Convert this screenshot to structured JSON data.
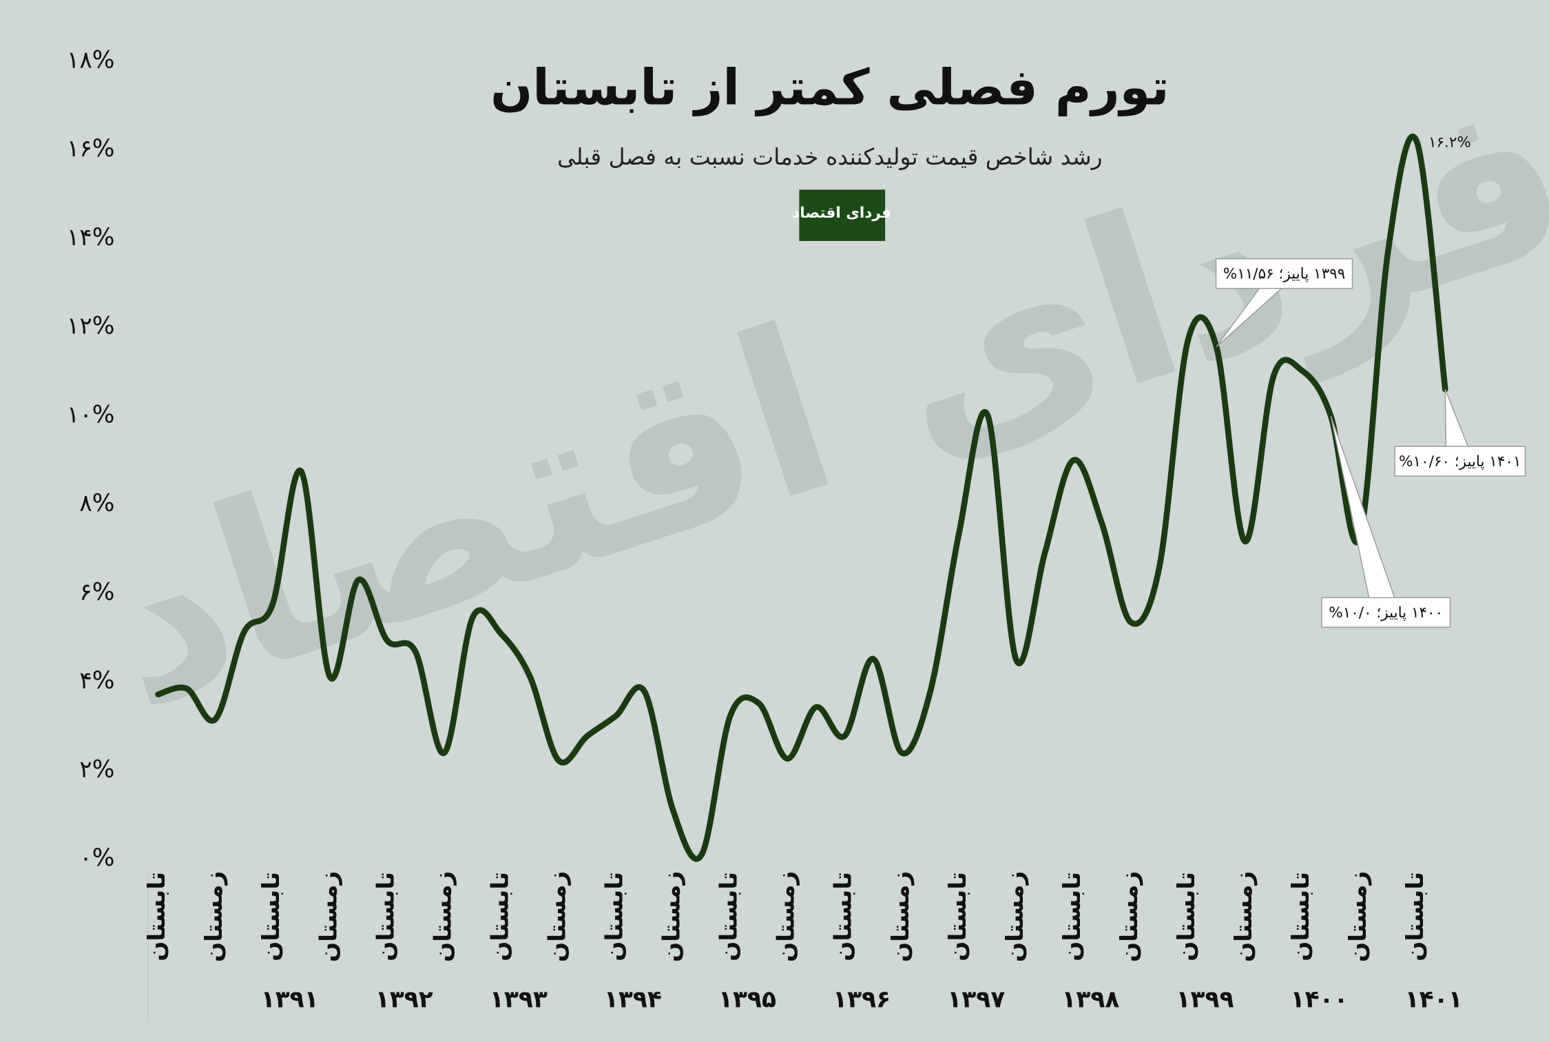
{
  "chart_data": {
    "type": "line",
    "title": "تورم فصلی کمتر از تابستان",
    "subtitle": "رشد شاخص قیمت تولیدکننده خدمات نسبت به فصل قبلی",
    "logo": "فردای اقتصاد",
    "color": "#1a3a12",
    "categories": [
      "تابستان",
      null,
      "زمستان",
      null,
      "تابستان",
      null,
      "زمستان",
      null,
      "تابستان",
      null,
      "زمستان",
      null,
      "تابستان",
      null,
      "زمستان",
      null,
      "تابستان",
      null,
      "زمستان",
      null,
      "تابستان",
      null,
      "زمستان",
      null,
      "تابستان",
      null,
      "زمستان",
      null,
      "تابستان",
      null,
      "زمستان",
      null,
      "تابستان",
      null,
      "زمستان",
      null,
      "تابستان",
      null,
      "زمستان",
      null,
      "تابستان",
      null,
      "زمستان",
      null,
      "تابستان",
      null
    ],
    "year_labels": [
      "۱۳۹۱",
      "۱۳۹۲",
      "۱۳۹۳",
      "۱۳۹۴",
      "۱۳۹۵",
      "۱۳۹۶",
      "۱۳۹۷",
      "۱۳۹۸",
      "۱۳۹۹",
      "۱۴۰۰",
      "۱۴۰۱"
    ],
    "values": [
      3.72,
      3.85,
      3.16,
      5.12,
      5.75,
      8.75,
      4.12,
      6.3,
      4.94,
      4.68,
      2.4,
      5.46,
      5.08,
      4.12,
      2.23,
      2.78,
      3.23,
      3.79,
      1.11,
      0.1,
      3.23,
      3.52,
      2.27,
      3.43,
      2.78,
      4.52,
      2.4,
      3.79,
      7.35,
      10.02,
      4.5,
      6.9,
      9.0,
      7.57,
      5.35,
      6.57,
      11.69,
      11.56,
      7.17,
      10.9,
      11.02,
      10.0,
      7.24,
      13.7,
      16.2,
      10.6
    ],
    "value_labels": [
      null,
      null,
      null,
      null,
      null,
      null,
      null,
      null,
      null,
      null,
      null,
      null,
      null,
      null,
      null,
      null,
      null,
      null,
      null,
      null,
      null,
      null,
      null,
      null,
      null,
      null,
      null,
      null,
      null,
      null,
      null,
      null,
      null,
      null,
      null,
      null,
      null,
      "۱۳۹۹ پاییز؛ ۱۱/۵۶%",
      null,
      null,
      null,
      "۱۴۰۰ پاییز؛ ۱۰/۰%",
      null,
      null,
      "۱۶.۲%",
      "۱۴۰۱ پاییز؛ ۱۰/۶۰%"
    ],
    "ylim": [
      0,
      18
    ],
    "yticks": [
      {
        "value": 0,
        "label": "۰%"
      },
      {
        "value": 2,
        "label": "۲%"
      },
      {
        "value": 4,
        "label": "۴%"
      },
      {
        "value": 6,
        "label": "۶%"
      },
      {
        "value": 8,
        "label": "۸%"
      },
      {
        "value": 10,
        "label": "۱۰%"
      },
      {
        "value": 12,
        "label": "۱۲%"
      },
      {
        "value": 14,
        "label": "۱۴%"
      },
      {
        "value": 16,
        "label": "۱۶%"
      },
      {
        "value": 18,
        "label": "۱۸%"
      }
    ]
  }
}
